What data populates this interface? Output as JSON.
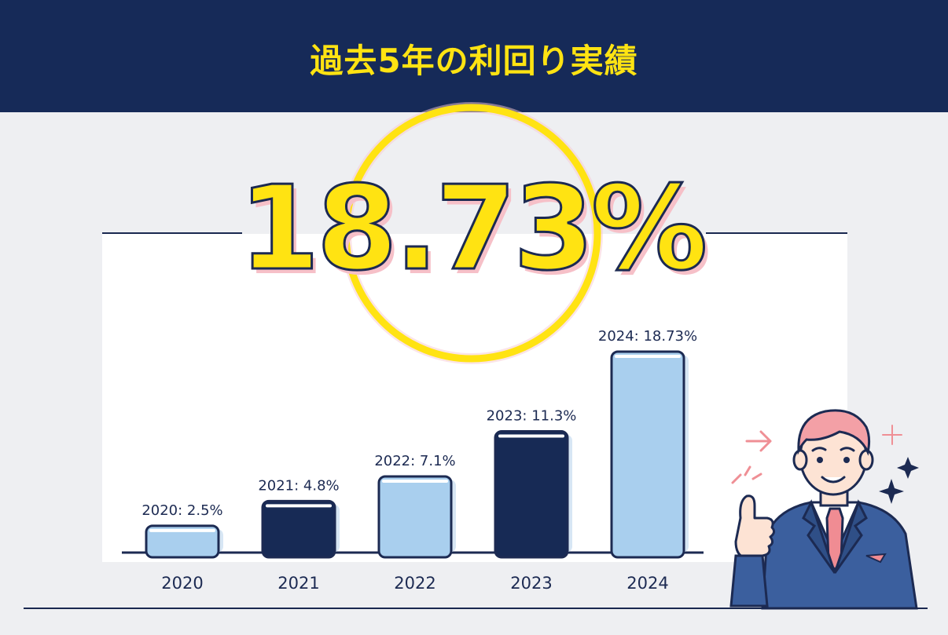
{
  "header": {
    "title": "過去5年の利回り実績"
  },
  "headline": {
    "value": "18.73%"
  },
  "colors": {
    "header_bg": "#162a58",
    "accent_yellow": "#ffe312",
    "bar_light": "#a9cfee",
    "bar_dark": "#172a55",
    "outline": "#1c2a52"
  },
  "chart_data": {
    "type": "bar",
    "categories": [
      "2020",
      "2021",
      "2022",
      "2023",
      "2024"
    ],
    "values": [
      2.5,
      4.8,
      7.1,
      11.3,
      18.73
    ],
    "data_labels": [
      "2020: 2.5%",
      "2021: 4.8%",
      "2022: 7.1%",
      "2023: 11.3%",
      "2024: 18.73%"
    ],
    "bar_styles": [
      "light",
      "dark",
      "light",
      "dark",
      "light"
    ],
    "title": "",
    "xlabel": "",
    "ylabel": "",
    "unit": "%",
    "ylim": [
      0,
      20
    ],
    "grid": false
  },
  "mascot": {
    "icon": "businessman-thumbs-up-icon"
  }
}
